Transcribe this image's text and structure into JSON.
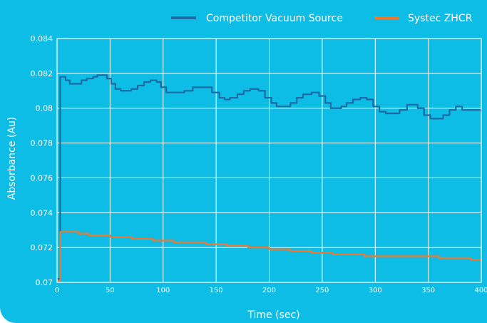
{
  "chart_data": {
    "type": "line",
    "title": "",
    "xlabel": "Time (sec)",
    "ylabel": "Absorbance (Au)",
    "xlim": [
      0,
      400
    ],
    "ylim": [
      0.07,
      0.084
    ],
    "xticks": [
      0,
      50,
      100,
      150,
      200,
      250,
      300,
      350,
      400
    ],
    "yticks": [
      0.07,
      0.072,
      0.074,
      0.076,
      0.078,
      0.08,
      0.082,
      0.084
    ],
    "xtick_labels": [
      "0",
      "50",
      "100",
      "150",
      "200",
      "250",
      "300",
      "350",
      "400"
    ],
    "ytick_labels": [
      "0.07",
      "0.072",
      "0.074",
      "0.076",
      "0.078",
      "0.08",
      "0.082",
      "0.084"
    ],
    "grid": true,
    "legend_position": "top-right",
    "series": [
      {
        "name": "Competitor Vacuum Source",
        "color": "#1a6aa3",
        "x": [
          0,
          2,
          3,
          4,
          8,
          12,
          18,
          23,
          28,
          34,
          38,
          43,
          47,
          51,
          55,
          60,
          64,
          70,
          76,
          82,
          88,
          94,
          98,
          103,
          108,
          113,
          120,
          128,
          134,
          140,
          146,
          153,
          158,
          163,
          170,
          176,
          182,
          190,
          196,
          202,
          207,
          213,
          220,
          226,
          232,
          240,
          247,
          253,
          258,
          263,
          268,
          273,
          279,
          286,
          292,
          298,
          304,
          310,
          316,
          323,
          330,
          336,
          340,
          346,
          352,
          358,
          364,
          370,
          376,
          382,
          390,
          396,
          400
        ],
        "y": [
          0.0702,
          0.0702,
          0.0818,
          0.0818,
          0.0816,
          0.0814,
          0.0814,
          0.0816,
          0.0817,
          0.0818,
          0.0819,
          0.0819,
          0.0817,
          0.0814,
          0.0811,
          0.081,
          0.081,
          0.0811,
          0.0813,
          0.0815,
          0.0816,
          0.0815,
          0.0812,
          0.0809,
          0.0809,
          0.0809,
          0.081,
          0.0812,
          0.0812,
          0.0812,
          0.0809,
          0.0806,
          0.0805,
          0.0806,
          0.0808,
          0.081,
          0.0811,
          0.081,
          0.0806,
          0.0803,
          0.0801,
          0.0801,
          0.0803,
          0.0806,
          0.0808,
          0.0809,
          0.0807,
          0.0803,
          0.08,
          0.08,
          0.0801,
          0.0803,
          0.0805,
          0.0806,
          0.0805,
          0.0801,
          0.0798,
          0.0797,
          0.0797,
          0.0799,
          0.0802,
          0.0802,
          0.08,
          0.0796,
          0.0794,
          0.0794,
          0.0796,
          0.0799,
          0.0801,
          0.0799,
          0.0799,
          0.0799,
          0.0798
        ]
      },
      {
        "name": "Systec ZHCR",
        "color": "#f0772e",
        "x": [
          0,
          2,
          3,
          4,
          10,
          20,
          30,
          40,
          50,
          60,
          70,
          80,
          90,
          100,
          110,
          120,
          130,
          140,
          150,
          160,
          170,
          180,
          190,
          200,
          210,
          220,
          230,
          240,
          250,
          260,
          270,
          280,
          290,
          300,
          310,
          320,
          330,
          340,
          350,
          360,
          370,
          380,
          390,
          400
        ],
        "y": [
          0.0701,
          0.0701,
          0.0729,
          0.0729,
          0.0729,
          0.0728,
          0.0727,
          0.0727,
          0.0726,
          0.0726,
          0.0725,
          0.0725,
          0.0724,
          0.0724,
          0.0723,
          0.0723,
          0.0723,
          0.0722,
          0.0722,
          0.0721,
          0.0721,
          0.072,
          0.072,
          0.0719,
          0.0719,
          0.0718,
          0.0718,
          0.0717,
          0.0717,
          0.0716,
          0.0716,
          0.0716,
          0.0715,
          0.0715,
          0.0715,
          0.0715,
          0.0715,
          0.0715,
          0.0715,
          0.0714,
          0.0714,
          0.0714,
          0.0713,
          0.0713
        ]
      }
    ]
  }
}
